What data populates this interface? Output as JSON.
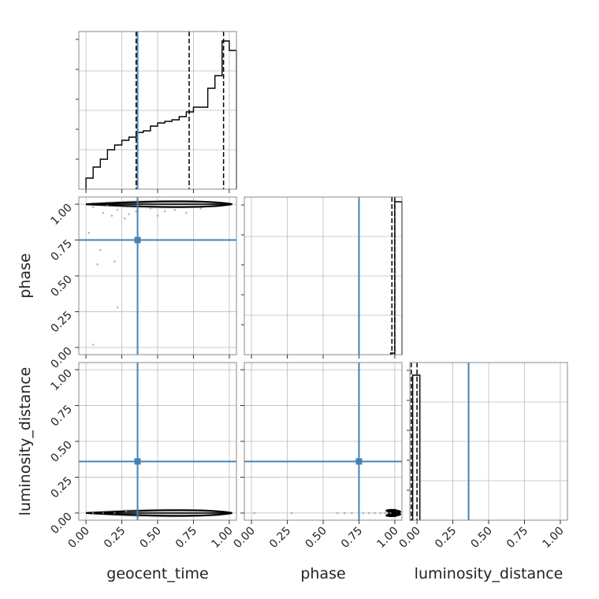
{
  "chart_data": {
    "type": "corner",
    "parameters": [
      "geocent_time",
      "phase",
      "luminosity_distance"
    ],
    "truths": {
      "geocent_time": 0.36,
      "phase": 0.75,
      "luminosity_distance": 0.36
    },
    "truth_color": "#4682b4",
    "grid": true,
    "tick_labels": [
      "0.00",
      "0.25",
      "0.50",
      "0.75",
      "1.00"
    ],
    "panels": [
      {
        "type": "histogram",
        "parameter": "geocent_time",
        "xlim": [
          -0.05,
          1.05
        ],
        "bin_edges": [
          0.0,
          0.05,
          0.1,
          0.15,
          0.2,
          0.25,
          0.3,
          0.35,
          0.4,
          0.45,
          0.5,
          0.55,
          0.6,
          0.65,
          0.7,
          0.75,
          0.8,
          0.85,
          0.9,
          0.95,
          1.0,
          1.05
        ],
        "counts": [
          0.07,
          0.14,
          0.19,
          0.25,
          0.28,
          0.31,
          0.33,
          0.36,
          0.37,
          0.4,
          0.42,
          0.43,
          0.44,
          0.46,
          0.49,
          0.52,
          0.52,
          0.64,
          0.72,
          0.94,
          0.88
        ],
        "ymax": 1.0,
        "quantiles": [
          0.35,
          0.72,
          0.96
        ]
      },
      {
        "type": "histogram",
        "parameter": "phase",
        "xlim": [
          -0.05,
          1.05
        ],
        "bin_edges": [
          0.97,
          1.0,
          1.05
        ],
        "counts": [
          0.01,
          0.97
        ],
        "ymax": 1.0,
        "quantiles": [
          0.98,
          1.0
        ]
      },
      {
        "type": "histogram",
        "parameter": "luminosity_distance",
        "xlim": [
          -0.05,
          1.05
        ],
        "bin_edges": [
          -0.05,
          -0.03,
          0.0,
          0.02
        ],
        "counts": [
          0.0,
          0.92,
          0.92
        ],
        "ymax": 1.0,
        "quantiles": [
          -0.04,
          0.0
        ]
      },
      {
        "type": "2d",
        "x": "geocent_time",
        "y": "phase",
        "xlim": [
          -0.05,
          1.05
        ],
        "ylim": [
          -0.05,
          1.05
        ],
        "scatter": [
          [
            0.05,
            0.98
          ],
          [
            0.12,
            0.94
          ],
          [
            0.18,
            0.92
          ],
          [
            0.22,
            0.96
          ],
          [
            0.3,
            0.93
          ],
          [
            0.35,
            0.95
          ],
          [
            0.27,
            0.9
          ],
          [
            0.45,
            0.97
          ],
          [
            0.55,
            0.95
          ],
          [
            0.1,
            0.68
          ],
          [
            0.2,
            0.6
          ],
          [
            0.08,
            0.58
          ],
          [
            0.22,
            0.28
          ],
          [
            0.05,
            0.02
          ],
          [
            0.02,
            0.8
          ],
          [
            0.15,
            0.99
          ],
          [
            0.5,
            0.92
          ],
          [
            0.62,
            0.96
          ],
          [
            0.7,
            0.94
          ],
          [
            0.8,
            0.97
          ]
        ],
        "density_band": {
          "y": 1.0,
          "x_start": 0.0,
          "x_end": 1.02
        }
      },
      {
        "type": "2d",
        "x": "geocent_time",
        "y": "luminosity_distance",
        "xlim": [
          -0.05,
          1.05
        ],
        "ylim": [
          -0.05,
          1.05
        ],
        "scatter": [
          [
            0.05,
            0.0
          ],
          [
            0.12,
            0.0
          ],
          [
            0.2,
            0.0
          ],
          [
            0.28,
            0.01
          ]
        ],
        "density_band": {
          "y": 0.0,
          "x_start": 0.0,
          "x_end": 1.02
        }
      },
      {
        "type": "2d",
        "x": "phase",
        "y": "luminosity_distance",
        "xlim": [
          -0.05,
          1.05
        ],
        "ylim": [
          -0.05,
          1.05
        ],
        "scatter": [
          [
            0.02,
            0.0
          ],
          [
            0.28,
            0.0
          ],
          [
            0.6,
            0.0
          ],
          [
            0.65,
            0.0
          ],
          [
            0.7,
            0.0
          ],
          [
            0.78,
            0.0
          ],
          [
            0.82,
            0.0
          ],
          [
            0.86,
            0.0
          ],
          [
            0.9,
            0.0
          ],
          [
            0.93,
            0.0
          ],
          [
            0.95,
            0.0
          ],
          [
            0.97,
            0.0
          ]
        ],
        "density_band": {
          "y": 0.0,
          "x_start": 0.97,
          "x_end": 1.01
        }
      }
    ]
  }
}
